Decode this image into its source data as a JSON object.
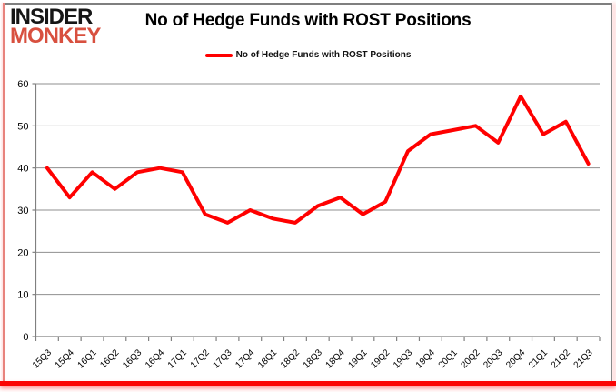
{
  "logo": {
    "line1": "INSIDER",
    "line2": "MONKEY"
  },
  "header": {
    "title": "No of Hedge Funds with ROST Positions"
  },
  "legend": {
    "label": "No of Hedge Funds with ROST Positions",
    "swatch_color": "#ff0000"
  },
  "colors": {
    "series": "#ff0000",
    "grid": "#8f8f8f",
    "axis": "#808080",
    "tick_text": "#000000",
    "logo_accent": "#d8503f",
    "frame_bottom": "#fb0503",
    "frame_left_accent": "#e8837d",
    "frame_gray": "#7f7f7f"
  },
  "chart_data": {
    "type": "line",
    "title": "No of Hedge Funds with ROST Positions",
    "categories": [
      "15Q3",
      "15Q4",
      "16Q1",
      "16Q2",
      "16Q3",
      "16Q4",
      "17Q1",
      "17Q2",
      "17Q3",
      "17Q4",
      "18Q1",
      "18Q2",
      "18Q3",
      "18Q4",
      "19Q1",
      "19Q2",
      "19Q3",
      "19Q4",
      "20Q1",
      "20Q2",
      "20Q3",
      "20Q4",
      "21Q1",
      "21Q2",
      "21Q3"
    ],
    "series": [
      {
        "name": "No of Hedge Funds with ROST Positions",
        "color": "#ff0000",
        "values": [
          40,
          33,
          39,
          35,
          39,
          40,
          39,
          29,
          27,
          30,
          28,
          27,
          31,
          33,
          29,
          32,
          44,
          48,
          49,
          50,
          46,
          57,
          48,
          51,
          41
        ]
      }
    ],
    "xlabel": "",
    "ylabel": "",
    "ylim": [
      0,
      60
    ],
    "yticks": [
      0,
      10,
      20,
      30,
      40,
      50,
      60
    ],
    "grid": true,
    "legend_position": "top"
  }
}
